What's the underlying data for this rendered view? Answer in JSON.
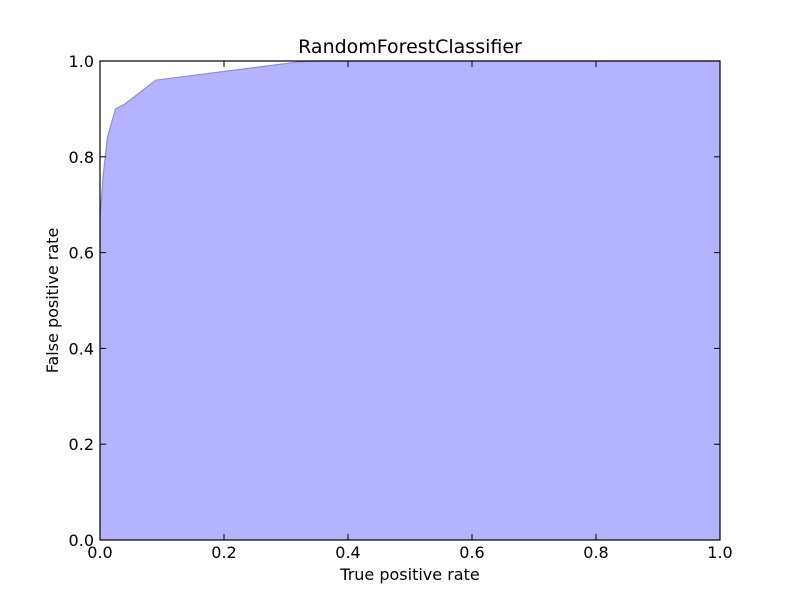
{
  "chart_data": {
    "type": "area",
    "title": "RandomForestClassifier",
    "xlabel": "True positive rate",
    "ylabel": "False positive rate",
    "xlim": [
      0.0,
      1.0
    ],
    "ylim": [
      0.0,
      1.0
    ],
    "xticks": [
      0.0,
      0.2,
      0.4,
      0.6,
      0.8,
      1.0
    ],
    "yticks": [
      0.0,
      0.2,
      0.4,
      0.6,
      0.8,
      1.0
    ],
    "xtick_labels": [
      "0.0",
      "0.2",
      "0.4",
      "0.6",
      "0.8",
      "1.0"
    ],
    "ytick_labels": [
      "0.0",
      "0.2",
      "0.4",
      "0.6",
      "0.8",
      "1.0"
    ],
    "grid": false,
    "fill_color": "#b3b3ff",
    "edge_color": "#8f8fcc",
    "series": [
      {
        "x": [
          0.0,
          0.005,
          0.012,
          0.025,
          0.04,
          0.09,
          0.32,
          0.35,
          0.5,
          1.0
        ],
        "y": [
          0.67,
          0.76,
          0.84,
          0.9,
          0.91,
          0.96,
          0.998,
          1.0,
          1.0,
          1.0
        ]
      }
    ]
  }
}
